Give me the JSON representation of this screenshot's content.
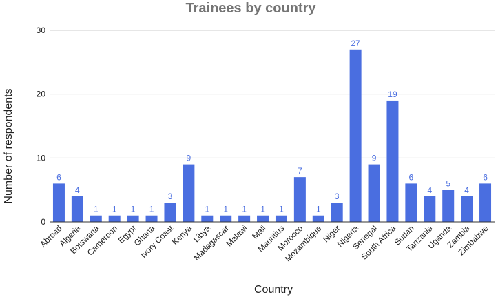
{
  "chart_data": {
    "type": "bar",
    "title": "Trainees by country",
    "xlabel": "Country",
    "ylabel": "Number of respondents",
    "ylim": [
      0,
      30
    ],
    "yticks": [
      0,
      10,
      20,
      30
    ],
    "grid": true,
    "bar_color": "#4a6ee0",
    "categories": [
      "Abroad",
      "Algeria",
      "Botswana",
      "Cameroon",
      "Egypt",
      "Ghana",
      "Ivory Coast",
      "Kenya",
      "Libya",
      "Madagascar",
      "Malawi",
      "Mali",
      "Mauritius",
      "Morocco",
      "Mozambique",
      "Niger",
      "Nigeria",
      "Senegal",
      "South Africa",
      "Sudan",
      "Tanzania",
      "Uganda",
      "Zambia",
      "Zimbabwe"
    ],
    "values": [
      6,
      4,
      1,
      1,
      1,
      1,
      3,
      9,
      1,
      1,
      1,
      1,
      1,
      7,
      1,
      3,
      27,
      9,
      19,
      6,
      4,
      5,
      4,
      6
    ]
  }
}
